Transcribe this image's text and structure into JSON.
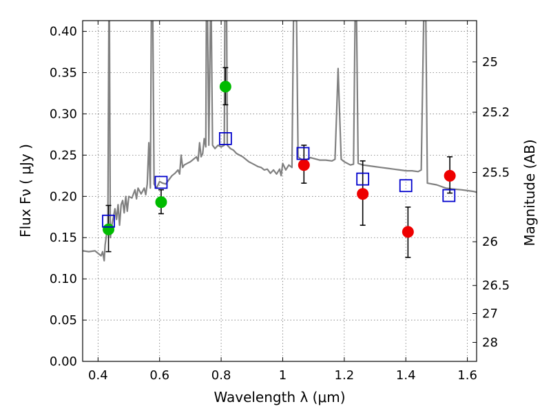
{
  "chart_data": {
    "type": "scatter",
    "xlabel": "Wavelength  λ (μm)",
    "ylabel": "Flux  Fν  ( μJy )",
    "ylabel_right": "Magnitude (AB)",
    "xlim": [
      0.35,
      1.63
    ],
    "ylim": [
      0.0,
      0.413
    ],
    "x_ticks": [
      "0.4",
      "0.6",
      "0.8",
      "1",
      "1.2",
      "1.4",
      "1.6"
    ],
    "x_tick_values": [
      0.4,
      0.6,
      0.8,
      1.0,
      1.2,
      1.4,
      1.6
    ],
    "y_ticks": [
      "0.00",
      "0.05",
      "0.10",
      "0.15",
      "0.20",
      "0.25",
      "0.30",
      "0.35",
      "0.40"
    ],
    "y_tick_values": [
      0.0,
      0.05,
      0.1,
      0.15,
      0.2,
      0.25,
      0.3,
      0.35,
      0.4
    ],
    "right_ticks": [
      {
        "label": "25",
        "flux": 0.363
      },
      {
        "label": "25.2",
        "flux": 0.302
      },
      {
        "label": "25.5",
        "flux": 0.229
      },
      {
        "label": "26",
        "flux": 0.145
      },
      {
        "label": "26.5",
        "flux": 0.092
      },
      {
        "label": "27",
        "flux": 0.058
      },
      {
        "label": "28",
        "flux": 0.023
      }
    ],
    "grid": true,
    "colors": {
      "spectrum": "#808080",
      "green": "#00bb00",
      "red": "#ee0000",
      "model": "#0000cc",
      "errorbar": "#000000"
    },
    "series": [
      {
        "kind": "line",
        "points": [
          [
            0.35,
            0.134
          ],
          [
            0.37,
            0.133
          ],
          [
            0.39,
            0.134
          ],
          [
            0.4,
            0.131
          ],
          [
            0.41,
            0.128
          ],
          [
            0.415,
            0.133
          ],
          [
            0.42,
            0.122
          ],
          [
            0.423,
            0.141
          ],
          [
            0.428,
            0.155
          ],
          [
            0.432,
            0.16
          ],
          [
            0.435,
            0.413
          ],
          [
            0.437,
            0.413
          ],
          [
            0.44,
            0.15
          ],
          [
            0.445,
            0.165
          ],
          [
            0.45,
            0.175
          ],
          [
            0.455,
            0.185
          ],
          [
            0.46,
            0.172
          ],
          [
            0.465,
            0.19
          ],
          [
            0.47,
            0.165
          ],
          [
            0.475,
            0.19
          ],
          [
            0.48,
            0.195
          ],
          [
            0.485,
            0.18
          ],
          [
            0.49,
            0.2
          ],
          [
            0.495,
            0.182
          ],
          [
            0.5,
            0.2
          ],
          [
            0.51,
            0.198
          ],
          [
            0.52,
            0.208
          ],
          [
            0.525,
            0.197
          ],
          [
            0.53,
            0.21
          ],
          [
            0.54,
            0.203
          ],
          [
            0.55,
            0.21
          ],
          [
            0.555,
            0.202
          ],
          [
            0.56,
            0.215
          ],
          [
            0.565,
            0.265
          ],
          [
            0.57,
            0.21
          ],
          [
            0.573,
            0.413
          ],
          [
            0.578,
            0.413
          ],
          [
            0.582,
            0.215
          ],
          [
            0.59,
            0.21
          ],
          [
            0.6,
            0.218
          ],
          [
            0.61,
            0.216
          ],
          [
            0.62,
            0.215
          ],
          [
            0.63,
            0.22
          ],
          [
            0.64,
            0.225
          ],
          [
            0.65,
            0.228
          ],
          [
            0.66,
            0.232
          ],
          [
            0.665,
            0.227
          ],
          [
            0.67,
            0.25
          ],
          [
            0.675,
            0.235
          ],
          [
            0.68,
            0.238
          ],
          [
            0.69,
            0.24
          ],
          [
            0.7,
            0.242
          ],
          [
            0.71,
            0.245
          ],
          [
            0.72,
            0.248
          ],
          [
            0.725,
            0.243
          ],
          [
            0.73,
            0.265
          ],
          [
            0.735,
            0.248
          ],
          [
            0.74,
            0.252
          ],
          [
            0.745,
            0.27
          ],
          [
            0.75,
            0.26
          ],
          [
            0.752,
            0.413
          ],
          [
            0.756,
            0.413
          ],
          [
            0.76,
            0.262
          ],
          [
            0.765,
            0.413
          ],
          [
            0.768,
            0.413
          ],
          [
            0.772,
            0.262
          ],
          [
            0.78,
            0.258
          ],
          [
            0.79,
            0.262
          ],
          [
            0.8,
            0.26
          ],
          [
            0.81,
            0.262
          ],
          [
            0.812,
            0.413
          ],
          [
            0.818,
            0.413
          ],
          [
            0.82,
            0.262
          ],
          [
            0.83,
            0.258
          ],
          [
            0.84,
            0.256
          ],
          [
            0.85,
            0.252
          ],
          [
            0.86,
            0.25
          ],
          [
            0.87,
            0.248
          ],
          [
            0.88,
            0.245
          ],
          [
            0.89,
            0.242
          ],
          [
            0.9,
            0.24
          ],
          [
            0.91,
            0.238
          ],
          [
            0.92,
            0.236
          ],
          [
            0.93,
            0.235
          ],
          [
            0.94,
            0.232
          ],
          [
            0.95,
            0.233
          ],
          [
            0.96,
            0.228
          ],
          [
            0.97,
            0.232
          ],
          [
            0.98,
            0.227
          ],
          [
            0.99,
            0.233
          ],
          [
            0.995,
            0.225
          ],
          [
            1.0,
            0.24
          ],
          [
            1.01,
            0.232
          ],
          [
            1.02,
            0.238
          ],
          [
            1.03,
            0.235
          ],
          [
            1.035,
            0.413
          ],
          [
            1.045,
            0.413
          ],
          [
            1.05,
            0.248
          ],
          [
            1.06,
            0.245
          ],
          [
            1.07,
            0.244
          ],
          [
            1.08,
            0.245
          ],
          [
            1.09,
            0.247
          ],
          [
            1.1,
            0.246
          ],
          [
            1.12,
            0.244
          ],
          [
            1.14,
            0.244
          ],
          [
            1.16,
            0.243
          ],
          [
            1.17,
            0.245
          ],
          [
            1.175,
            0.3
          ],
          [
            1.18,
            0.355
          ],
          [
            1.185,
            0.3
          ],
          [
            1.19,
            0.245
          ],
          [
            1.2,
            0.242
          ],
          [
            1.22,
            0.238
          ],
          [
            1.23,
            0.239
          ],
          [
            1.235,
            0.413
          ],
          [
            1.24,
            0.413
          ],
          [
            1.245,
            0.24
          ],
          [
            1.26,
            0.238
          ],
          [
            1.28,
            0.237
          ],
          [
            1.3,
            0.236
          ],
          [
            1.32,
            0.235
          ],
          [
            1.34,
            0.234
          ],
          [
            1.36,
            0.233
          ],
          [
            1.38,
            0.232
          ],
          [
            1.4,
            0.231
          ],
          [
            1.42,
            0.231
          ],
          [
            1.44,
            0.23
          ],
          [
            1.45,
            0.232
          ],
          [
            1.458,
            0.413
          ],
          [
            1.465,
            0.413
          ],
          [
            1.47,
            0.216
          ],
          [
            1.5,
            0.214
          ],
          [
            1.53,
            0.21
          ],
          [
            1.55,
            0.209
          ],
          [
            1.58,
            0.208
          ],
          [
            1.6,
            0.207
          ],
          [
            1.62,
            0.206
          ],
          [
            1.63,
            0.205
          ]
        ]
      },
      {
        "kind": "points",
        "color": "green",
        "points": [
          {
            "x": 0.434,
            "y": 0.16,
            "yerr_low": 0.133,
            "yerr_high": 0.189
          },
          {
            "x": 0.605,
            "y": 0.193,
            "yerr_low": 0.179,
            "yerr_high": 0.208
          },
          {
            "x": 0.814,
            "y": 0.333,
            "yerr_low": 0.311,
            "yerr_high": 0.356
          }
        ]
      },
      {
        "kind": "points",
        "color": "red",
        "points": [
          {
            "x": 1.069,
            "y": 0.238,
            "yerr_low": 0.216,
            "yerr_high": 0.262
          },
          {
            "x": 1.26,
            "y": 0.203,
            "yerr_low": 0.165,
            "yerr_high": 0.243
          },
          {
            "x": 1.407,
            "y": 0.157,
            "yerr_low": 0.126,
            "yerr_high": 0.187
          },
          {
            "x": 1.543,
            "y": 0.225,
            "yerr_low": 0.204,
            "yerr_high": 0.248
          }
        ]
      },
      {
        "kind": "squares",
        "color": "model",
        "points": [
          {
            "x": 0.434,
            "y": 0.17
          },
          {
            "x": 0.605,
            "y": 0.217
          },
          {
            "x": 0.814,
            "y": 0.27
          },
          {
            "x": 1.066,
            "y": 0.252
          },
          {
            "x": 1.26,
            "y": 0.221
          },
          {
            "x": 1.4,
            "y": 0.213
          },
          {
            "x": 1.54,
            "y": 0.201
          }
        ]
      }
    ]
  }
}
